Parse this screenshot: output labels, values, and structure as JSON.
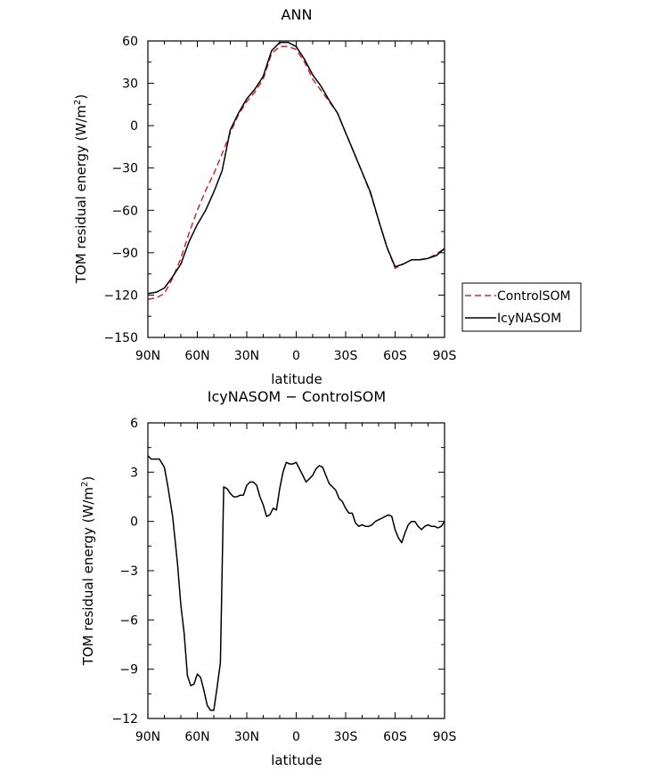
{
  "chart_data": [
    {
      "type": "line",
      "title": "ANN",
      "xlabel": "latitude",
      "ylabel": "TOM residual energy (W/m²)",
      "ylim": [
        -150,
        60
      ],
      "xlim": [
        90,
        -90
      ],
      "yticks": [
        60,
        30,
        0,
        -30,
        -60,
        -90,
        -120,
        -150
      ],
      "ytick_labels": [
        "60",
        "30",
        "0",
        "−30",
        "−60",
        "−90",
        "−120",
        "−150"
      ],
      "xticks": [
        90,
        60,
        30,
        0,
        -30,
        -60,
        -90
      ],
      "xtick_labels": [
        "90N",
        "60N",
        "30N",
        "0",
        "30S",
        "60S",
        "90S"
      ],
      "legend": {
        "placement": "right, outside plot",
        "entries": [
          "ControlSOM",
          "IcyNASOM"
        ]
      },
      "series": [
        {
          "name": "ControlSOM",
          "color": "#d62728",
          "style": "dashed",
          "x": [
            90,
            85,
            80,
            75,
            70,
            65,
            60,
            55,
            50,
            45,
            40,
            35,
            30,
            25,
            20,
            15,
            10,
            5,
            0,
            -5,
            -10,
            -15,
            -20,
            -25,
            -30,
            -35,
            -40,
            -45,
            -50,
            -55,
            -60,
            -65,
            -70,
            -75,
            -80,
            -85,
            -90
          ],
          "values": [
            -123,
            -122,
            -119,
            -108,
            -94,
            -76,
            -60,
            -46,
            -34,
            -20,
            -5,
            8,
            17,
            24,
            33,
            51,
            56,
            56,
            54,
            45,
            33,
            25,
            17,
            9,
            -5,
            -19,
            -33,
            -48,
            -67,
            -86,
            -101,
            -98,
            -95,
            -95,
            -94,
            -91,
            -87
          ]
        },
        {
          "name": "IcyNASOM",
          "color": "#000000",
          "style": "solid",
          "x": [
            90,
            85,
            80,
            75,
            70,
            65,
            60,
            55,
            50,
            45,
            40,
            35,
            30,
            25,
            20,
            15,
            10,
            5,
            0,
            -5,
            -10,
            -15,
            -20,
            -25,
            -30,
            -35,
            -40,
            -45,
            -50,
            -55,
            -60,
            -65,
            -70,
            -75,
            -80,
            -85,
            -90
          ],
          "values": [
            -119,
            -118,
            -115,
            -107,
            -98,
            -82,
            -70,
            -60,
            -47,
            -32,
            -3,
            9,
            19,
            26,
            35,
            53,
            59,
            59,
            56,
            47,
            36,
            28,
            18,
            9,
            -5,
            -19,
            -33,
            -47,
            -67,
            -86,
            -100,
            -98,
            -95,
            -95,
            -94,
            -92,
            -87
          ]
        }
      ]
    },
    {
      "type": "line",
      "title": "IcyNASOM − ControlSOM",
      "xlabel": "latitude",
      "ylabel": "TOM residual energy (W/m²)",
      "ylim": [
        -12,
        6
      ],
      "xlim": [
        90,
        -90
      ],
      "yticks": [
        6,
        3,
        0,
        -3,
        -6,
        -9,
        -12
      ],
      "ytick_labels": [
        "6",
        "3",
        "0",
        "−3",
        "−6",
        "−9",
        "−12"
      ],
      "xticks": [
        90,
        60,
        30,
        0,
        -30,
        -60,
        -90
      ],
      "xtick_labels": [
        "90N",
        "60N",
        "30N",
        "0",
        "30S",
        "60S",
        "90S"
      ],
      "series": [
        {
          "color": "#000000",
          "style": "solid",
          "x": [
            90,
            88,
            86,
            83,
            80,
            78,
            75,
            72,
            70,
            68,
            66,
            64,
            62,
            60,
            58,
            56,
            54,
            52,
            50,
            48,
            46,
            44,
            42,
            40,
            38,
            36,
            34,
            32,
            30,
            28,
            26,
            24,
            22,
            20,
            18,
            16,
            14,
            12,
            10,
            8,
            6,
            4,
            2,
            0,
            -2,
            -4,
            -6,
            -8,
            -10,
            -12,
            -14,
            -16,
            -18,
            -20,
            -22,
            -24,
            -26,
            -28,
            -30,
            -32,
            -34,
            -36,
            -38,
            -40,
            -42,
            -44,
            -46,
            -48,
            -50,
            -52,
            -54,
            -56,
            -58,
            -60,
            -62,
            -64,
            -66,
            -68,
            -70,
            -72,
            -74,
            -76,
            -78,
            -80,
            -82,
            -84,
            -86,
            -88,
            -90
          ],
          "values": [
            4.0,
            3.8,
            3.8,
            3.8,
            3.3,
            2.2,
            0.3,
            -2.6,
            -5.1,
            -6.8,
            -9.4,
            -10.0,
            -9.9,
            -9.3,
            -9.5,
            -10.3,
            -11.2,
            -11.5,
            -11.5,
            -10.1,
            -8.6,
            2.1,
            2.0,
            1.7,
            1.5,
            1.5,
            1.6,
            1.6,
            2.2,
            2.4,
            2.4,
            2.2,
            1.5,
            1.0,
            0.3,
            0.4,
            0.8,
            0.7,
            2.0,
            3.0,
            3.6,
            3.5,
            3.5,
            3.6,
            3.2,
            2.8,
            2.4,
            2.6,
            2.8,
            3.2,
            3.4,
            3.3,
            2.8,
            2.3,
            2.1,
            1.9,
            1.4,
            1.2,
            0.8,
            0.5,
            0.5,
            -0.1,
            -0.3,
            -0.2,
            -0.3,
            -0.3,
            -0.2,
            0.0,
            0.1,
            0.2,
            0.3,
            0.4,
            0.3,
            -0.5,
            -1.0,
            -1.3,
            -0.7,
            -0.2,
            0.0,
            0.0,
            -0.3,
            -0.5,
            -0.3,
            -0.2,
            -0.3,
            -0.3,
            -0.4,
            -0.3,
            0.0
          ]
        }
      ]
    }
  ]
}
